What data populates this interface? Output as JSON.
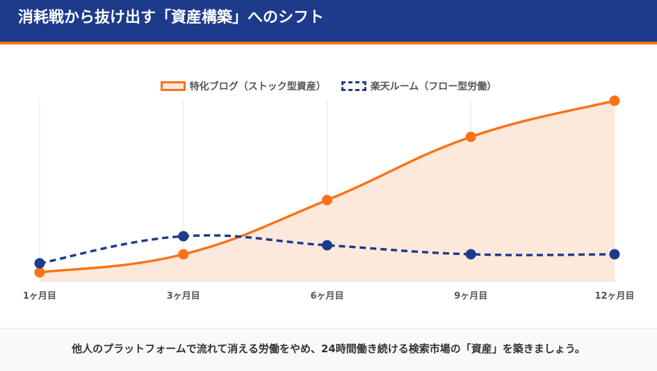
{
  "header": {
    "title": "消耗戦から抜け出す「資産構築」へのシフト"
  },
  "chart_data": {
    "type": "line",
    "categories": [
      "1ヶ月目",
      "3ヶ月目",
      "6ヶ月目",
      "9ヶ月目",
      "12ヶ月目"
    ],
    "series": [
      {
        "name": "特化ブログ（ストック型資産）",
        "values": [
          5,
          15,
          45,
          80,
          100
        ],
        "color": "#f97316",
        "fill": "#fde8dc",
        "style": "solid-area"
      },
      {
        "name": "楽天ルーム（フロー型労働）",
        "values": [
          10,
          25,
          20,
          15,
          15
        ],
        "color": "#1e3a8a",
        "style": "dashed"
      }
    ],
    "ylim": [
      0,
      100
    ],
    "y_axis_labels": "none",
    "grid": "vertical",
    "legend": "top-center"
  },
  "footer": {
    "text": "他人のプラットフォームで流れて消える労働をやめ、24時間働き続ける検索市場の「資産」を築きましょう。"
  }
}
